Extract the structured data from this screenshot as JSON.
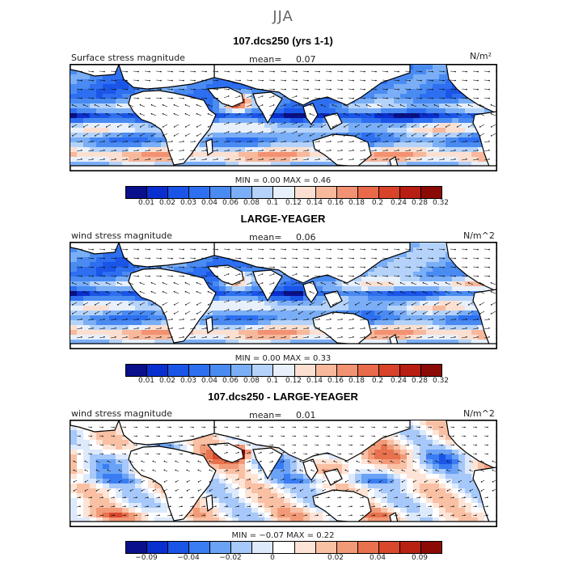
{
  "title": "JJA",
  "colors": {
    "abs": [
      "#08108c",
      "#0a2fd0",
      "#1a55e8",
      "#2d6ff0",
      "#4a8bf2",
      "#7aaef6",
      "#b5d3fa",
      "#e8f0fc",
      "#fbe0d2",
      "#f7b89c",
      "#f29272",
      "#e86a4a",
      "#d8432a",
      "#b81e12",
      "#8c0a05"
    ],
    "diff": [
      "#08108c",
      "#0a2fd0",
      "#1a55e8",
      "#3a7cf2",
      "#6aa2f6",
      "#a6c8fa",
      "#dde9fc",
      "#ffffff",
      "#fde4d6",
      "#f9c0a4",
      "#f29a78",
      "#e8724e",
      "#d8482c",
      "#b82212",
      "#8c0a05"
    ],
    "land": "#ffffff"
  },
  "panels": [
    {
      "title": "107.dcs250 (yrs 1-1)",
      "left_label": "Surface stress magnitude",
      "mean_label": "mean=",
      "mean_value": "0.07",
      "units": "N/m²",
      "min_label": "MIN =",
      "min_value": "0.00",
      "max_label": "MAX =",
      "max_value": "0.46",
      "ticks": [
        "0.01",
        "0.02",
        "0.03",
        "0.04",
        "0.06",
        "0.08",
        "0.1",
        "0.12",
        "0.14",
        "0.16",
        "0.18",
        "0.2",
        "0.24",
        "0.28",
        "0.32"
      ]
    },
    {
      "title": "LARGE-YEAGER",
      "left_label": "wind stress magnitude",
      "mean_label": "mean=",
      "mean_value": "0.06",
      "units": "N/m^2",
      "min_label": "MIN =",
      "min_value": "0.00",
      "max_label": "MAX =",
      "max_value": "0.33",
      "ticks": [
        "0.01",
        "0.02",
        "0.03",
        "0.04",
        "0.06",
        "0.08",
        "0.1",
        "0.12",
        "0.14",
        "0.16",
        "0.18",
        "0.2",
        "0.24",
        "0.28",
        "0.32"
      ]
    },
    {
      "title": "107.dcs250 - LARGE-YEAGER",
      "left_label": "wind stress magnitude",
      "mean_label": "mean=",
      "mean_value": "0.01",
      "units": "N/m^2",
      "min_label": "MIN =",
      "min_value": "−0.07",
      "max_label": "MAX =",
      "max_value": "0.22",
      "ticks": [
        "−0.09",
        "−0.04",
        "−0.02",
        "0",
        "0.02",
        "0.04",
        "0.09"
      ]
    }
  ],
  "chart_data": [
    {
      "type": "heatmap",
      "title": "107.dcs250 (yrs 1-1)",
      "variable": "Surface stress magnitude",
      "units": "N/m²",
      "mean": 0.07,
      "min": 0.0,
      "max": 0.46,
      "colorbar_levels": [
        0.01,
        0.02,
        0.03,
        0.04,
        0.06,
        0.08,
        0.1,
        0.12,
        0.14,
        0.16,
        0.18,
        0.2,
        0.24,
        0.28,
        0.32
      ]
    },
    {
      "type": "heatmap",
      "title": "LARGE-YEAGER",
      "variable": "wind stress magnitude",
      "units": "N/m^2",
      "mean": 0.06,
      "min": 0.0,
      "max": 0.33,
      "colorbar_levels": [
        0.01,
        0.02,
        0.03,
        0.04,
        0.06,
        0.08,
        0.1,
        0.12,
        0.14,
        0.16,
        0.18,
        0.2,
        0.24,
        0.28,
        0.32
      ]
    },
    {
      "type": "heatmap",
      "title": "107.dcs250 - LARGE-YEAGER",
      "variable": "wind stress magnitude",
      "units": "N/m^2",
      "mean": 0.01,
      "min": -0.07,
      "max": 0.22,
      "colorbar_levels": [
        -0.09,
        -0.04,
        -0.02,
        0,
        0.02,
        0.04,
        0.09
      ]
    }
  ]
}
